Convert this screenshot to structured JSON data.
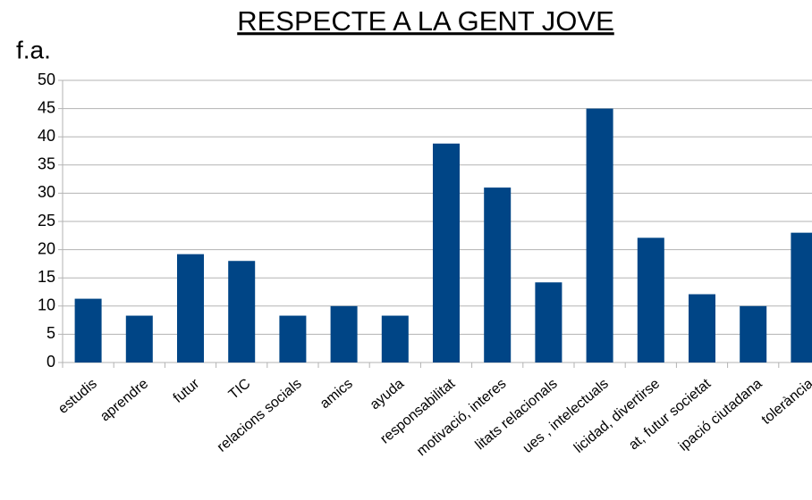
{
  "chart_data": {
    "type": "bar",
    "title": "RESPECTE A LA GENT JOVE",
    "y_label": "f.a.",
    "categories": [
      "estudis",
      "aprendre",
      "futur",
      "TIC",
      "relacions socials",
      "amics",
      "ayuda",
      "responsabilitat",
      "motivació, interes",
      "litats relacionals",
      "ues , intelectuals",
      "licidad, divertirse",
      "at, futur societat",
      "ipació ciutadana",
      "tolerància"
    ],
    "values": [
      11.3,
      8.3,
      19.2,
      18,
      8.3,
      10,
      8.3,
      38.8,
      31,
      14.2,
      45,
      22.1,
      12.1,
      10,
      23
    ],
    "color": "#004586",
    "ylim": [
      0,
      50
    ],
    "yticks": [
      0,
      5,
      10,
      15,
      20,
      25,
      30,
      35,
      40,
      45,
      50
    ],
    "grid": true
  }
}
